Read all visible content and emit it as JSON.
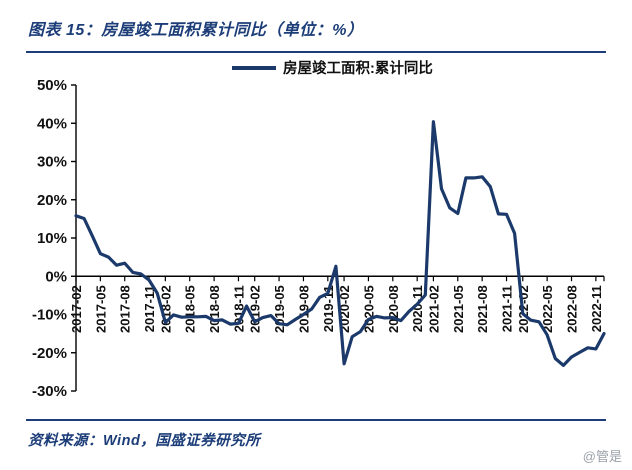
{
  "header": {
    "title": "图表 15：房屋竣工面积累计同比（单位：%）"
  },
  "footer": {
    "source": "资料来源：Wind，国盛证券研究所"
  },
  "watermark": {
    "text": "@管是"
  },
  "colors": {
    "accent": "#1C3D78",
    "line": "#1B3A6B",
    "axis": "#000000"
  },
  "chart_data": {
    "type": "line",
    "title": "房屋竣工面积累计同比（单位：%）",
    "legend": [
      {
        "label": "房屋竣工面积:累计同比",
        "color": "#1B3A6B"
      }
    ],
    "legend_position": "top-center",
    "grid": false,
    "ylim": [
      -30,
      50
    ],
    "y_tick_values": [
      50,
      40,
      30,
      20,
      10,
      0,
      -10,
      -20,
      -30
    ],
    "y_tick_labels": [
      "50%",
      "40%",
      "30%",
      "20%",
      "10%",
      "0%",
      "-10%",
      "-20%",
      "-30%"
    ],
    "x_label_rotation": -90,
    "x": [
      "2017-02",
      "2017-03",
      "2017-04",
      "2017-05",
      "2017-06",
      "2017-07",
      "2017-08",
      "2017-09",
      "2017-10",
      "2017-11",
      "2017-12",
      "2018-02",
      "2018-03",
      "2018-04",
      "2018-05",
      "2018-06",
      "2018-07",
      "2018-08",
      "2018-09",
      "2018-10",
      "2018-11",
      "2018-12",
      "2019-02",
      "2019-03",
      "2019-04",
      "2019-05",
      "2019-06",
      "2019-07",
      "2019-08",
      "2019-09",
      "2019-10",
      "2019-11",
      "2019-12",
      "2020-02",
      "2020-03",
      "2020-04",
      "2020-05",
      "2020-06",
      "2020-07",
      "2020-08",
      "2020-09",
      "2020-10",
      "2020-11",
      "2020-12",
      "2021-02",
      "2021-03",
      "2021-04",
      "2021-05",
      "2021-06",
      "2021-07",
      "2021-08",
      "2021-09",
      "2021-10",
      "2021-11",
      "2021-12",
      "2022-02",
      "2022-03",
      "2022-04",
      "2022-05",
      "2022-06",
      "2022-07",
      "2022-08",
      "2022-09",
      "2022-10",
      "2022-11",
      "2022-12"
    ],
    "x_tick_labels": [
      "2017-02",
      "2017-05",
      "2017-08",
      "2017-11",
      "2018-02",
      "2018-05",
      "2018-08",
      "2018-11",
      "2019-02",
      "2019-05",
      "2019-08",
      "2019-11",
      "2020-02",
      "2020-05",
      "2020-08",
      "2020-11",
      "2021-02",
      "2021-05",
      "2021-08",
      "2021-11",
      "2022-02",
      "2022-05",
      "2022-08",
      "2022-11"
    ],
    "values": [
      15.8,
      15.1,
      10.6,
      5.9,
      5.0,
      2.9,
      3.4,
      1.0,
      0.6,
      -1.0,
      -4.4,
      -12.1,
      -10.1,
      -10.7,
      -10.6,
      -10.6,
      -10.5,
      -11.6,
      -11.4,
      -12.5,
      -12.3,
      -7.8,
      -11.9,
      -10.8,
      -10.3,
      -12.4,
      -12.7,
      -11.3,
      -10.0,
      -8.6,
      -5.5,
      -4.5,
      2.6,
      -22.9,
      -15.8,
      -14.5,
      -11.3,
      -10.5,
      -10.9,
      -10.8,
      -11.6,
      -9.2,
      -7.3,
      -4.9,
      40.4,
      22.9,
      17.9,
      16.4,
      25.7,
      25.7,
      26.0,
      23.4,
      16.3,
      16.2,
      11.2,
      -9.8,
      -11.5,
      -11.9,
      -15.3,
      -21.5,
      -23.3,
      -21.1,
      -19.9,
      -18.7,
      -19.0,
      -15.0
    ]
  }
}
